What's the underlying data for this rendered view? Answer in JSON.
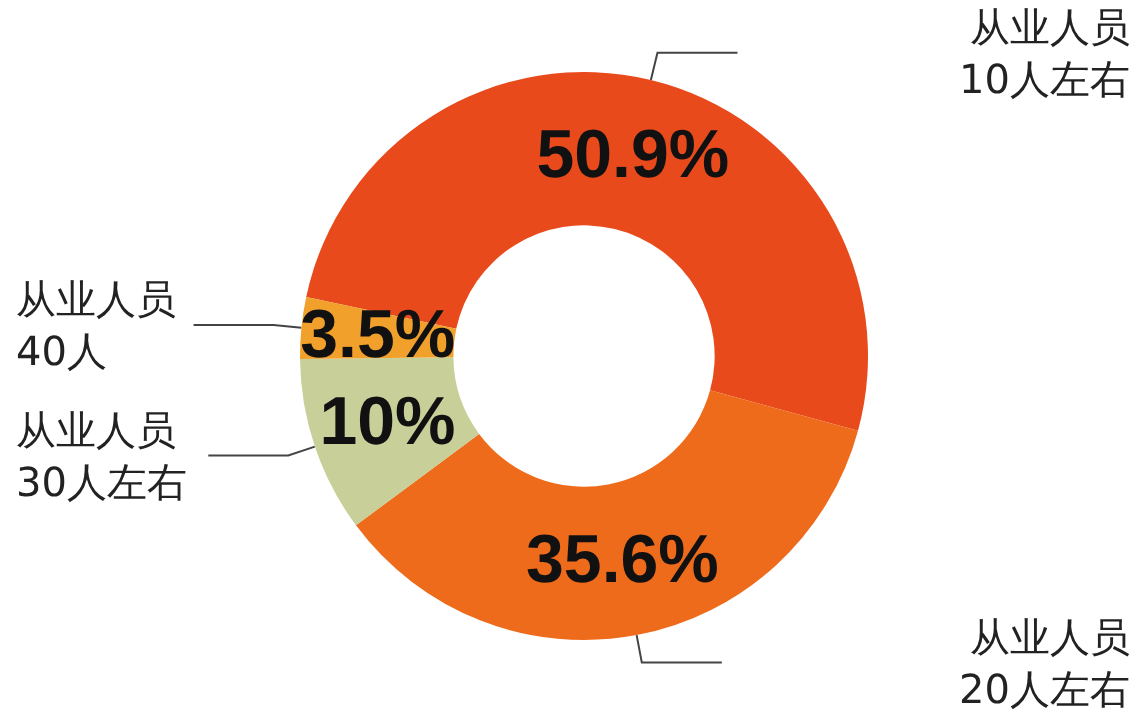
{
  "chart_data": {
    "type": "donut",
    "categories": [
      "从业人员\n10人左右",
      "从业人员\n20人左右",
      "从业人员\n30人左右",
      "从业人员\n40人"
    ],
    "values": [
      50.9,
      35.6,
      10,
      3.5
    ],
    "value_labels": [
      "50.9%",
      "35.6%",
      "10%",
      "3.5%"
    ],
    "colors": [
      "#e84a1c",
      "#ee6b1b",
      "#c9cf98",
      "#f2a02c"
    ],
    "legend": false
  }
}
